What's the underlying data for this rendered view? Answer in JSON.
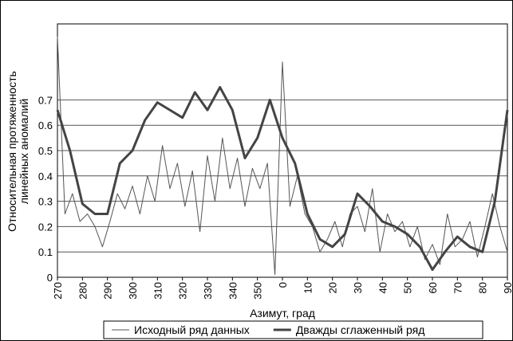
{
  "chart_data": {
    "type": "line",
    "ylabel": [
      "Относительная протяженность",
      "линейных аномалий"
    ],
    "xlabel": "Азимут, град",
    "xlim": [
      270,
      450
    ],
    "xticks": [
      270,
      280,
      290,
      300,
      310,
      320,
      330,
      340,
      350,
      {
        "value": 360,
        "label": "0"
      },
      {
        "value": 370,
        "label": "10"
      },
      {
        "value": 380,
        "label": "20"
      },
      {
        "value": 390,
        "label": "30"
      },
      {
        "value": 400,
        "label": "40"
      },
      {
        "value": 410,
        "label": "50"
      },
      {
        "value": 420,
        "label": "60"
      },
      {
        "value": 430,
        "label": "70"
      },
      {
        "value": 440,
        "label": "80"
      },
      {
        "value": 450,
        "label": "90"
      }
    ],
    "ylim": [
      0,
      1.0
    ],
    "yticks": [
      0,
      0.1,
      0.2,
      0.3,
      0.4,
      0.5,
      0.6,
      0.7
    ],
    "grid": true,
    "legend": "bottom",
    "series": [
      {
        "name": "Исходный ряд данных",
        "color": "#555555",
        "width": 1,
        "x": [
          270,
          273,
          276,
          279,
          282,
          285,
          288,
          291,
          294,
          297,
          300,
          303,
          306,
          309,
          312,
          315,
          318,
          321,
          324,
          327,
          330,
          333,
          336,
          339,
          342,
          345,
          348,
          351,
          354,
          357,
          360,
          363,
          366,
          369,
          372,
          375,
          378,
          381,
          384,
          387,
          390,
          393,
          396,
          399,
          402,
          405,
          408,
          411,
          414,
          417,
          420,
          423,
          426,
          429,
          432,
          435,
          438,
          441,
          444,
          447,
          450
        ],
        "values": [
          0.95,
          0.25,
          0.33,
          0.22,
          0.25,
          0.2,
          0.12,
          0.22,
          0.33,
          0.27,
          0.36,
          0.25,
          0.4,
          0.3,
          0.52,
          0.35,
          0.45,
          0.28,
          0.42,
          0.18,
          0.48,
          0.3,
          0.55,
          0.35,
          0.47,
          0.28,
          0.43,
          0.35,
          0.45,
          0.01,
          0.85,
          0.28,
          0.4,
          0.25,
          0.2,
          0.1,
          0.15,
          0.22,
          0.12,
          0.25,
          0.28,
          0.18,
          0.35,
          0.1,
          0.25,
          0.18,
          0.22,
          0.12,
          0.2,
          0.07,
          0.13,
          0.05,
          0.25,
          0.12,
          0.15,
          0.22,
          0.08,
          0.2,
          0.33,
          0.2,
          0.1
        ]
      },
      {
        "name": "Дважды сглаженный ряд",
        "color": "#444444",
        "width": 3,
        "x": [
          270,
          275,
          280,
          285,
          290,
          295,
          300,
          305,
          310,
          315,
          320,
          325,
          330,
          335,
          340,
          345,
          350,
          355,
          360,
          365,
          370,
          375,
          380,
          385,
          390,
          395,
          400,
          405,
          410,
          415,
          420,
          425,
          430,
          435,
          440,
          445,
          450
        ],
        "values": [
          0.66,
          0.5,
          0.29,
          0.25,
          0.25,
          0.45,
          0.5,
          0.62,
          0.69,
          0.66,
          0.63,
          0.73,
          0.66,
          0.75,
          0.66,
          0.47,
          0.55,
          0.7,
          0.55,
          0.45,
          0.25,
          0.15,
          0.12,
          0.17,
          0.33,
          0.28,
          0.22,
          0.2,
          0.17,
          0.12,
          0.03,
          0.1,
          0.16,
          0.12,
          0.1,
          0.3,
          0.66
        ]
      }
    ]
  }
}
